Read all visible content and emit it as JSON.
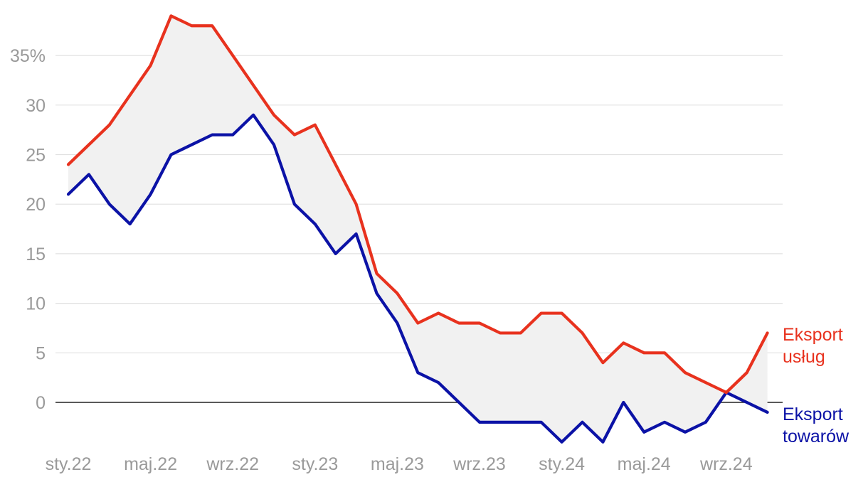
{
  "chart_data": {
    "type": "line",
    "title": "",
    "xlabel": "",
    "ylabel": "",
    "ylim": [
      -4,
      39
    ],
    "grid": true,
    "y_ticks": [
      {
        "value": 35,
        "label": "35%"
      },
      {
        "value": 30,
        "label": "30"
      },
      {
        "value": 25,
        "label": "25"
      },
      {
        "value": 20,
        "label": "20"
      },
      {
        "value": 15,
        "label": "15"
      },
      {
        "value": 10,
        "label": "10"
      },
      {
        "value": 5,
        "label": "5"
      },
      {
        "value": 0,
        "label": "0"
      }
    ],
    "x_ticks": [
      {
        "index": 0,
        "label": "sty.22"
      },
      {
        "index": 4,
        "label": "maj.22"
      },
      {
        "index": 8,
        "label": "wrz.22"
      },
      {
        "index": 12,
        "label": "sty.23"
      },
      {
        "index": 16,
        "label": "maj.23"
      },
      {
        "index": 20,
        "label": "wrz.23"
      },
      {
        "index": 24,
        "label": "sty.24"
      },
      {
        "index": 28,
        "label": "maj.24"
      },
      {
        "index": 32,
        "label": "wrz.24"
      }
    ],
    "series": [
      {
        "name_lines": [
          "Eksport",
          "usług"
        ],
        "color": "#e8321e",
        "values": [
          24,
          26,
          28,
          31,
          34,
          39,
          38,
          38,
          35,
          32,
          29,
          27,
          28,
          24,
          20,
          13,
          11,
          8,
          9,
          8,
          8,
          7,
          7,
          9,
          9,
          7,
          4,
          6,
          5,
          5,
          3,
          2,
          1,
          3,
          7
        ]
      },
      {
        "name_lines": [
          "Eksport",
          "towarów"
        ],
        "color": "#0b12a6",
        "values": [
          21,
          23,
          20,
          18,
          21,
          25,
          26,
          27,
          27,
          29,
          26,
          20,
          18,
          15,
          17,
          11,
          8,
          3,
          2,
          0,
          -2,
          -2,
          -2,
          -2,
          -4,
          -2,
          -4,
          0,
          -3,
          -2,
          -3,
          -2,
          1,
          0,
          -1
        ]
      }
    ],
    "band_color": "#f1f1f1"
  }
}
